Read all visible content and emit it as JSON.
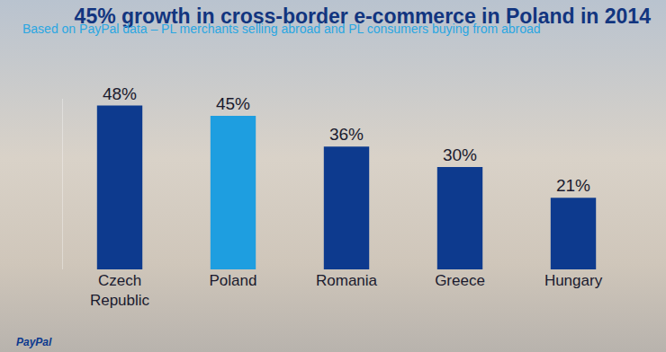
{
  "chart_data": {
    "type": "bar",
    "title": "45% growth in cross-border e-commerce in Poland in 2014",
    "subtitle": "Based on PayPal data – PL merchants selling abroad and PL consumers buying from abroad",
    "categories": [
      "Czech Republic",
      "Poland",
      "Romania",
      "Greece",
      "Hungary"
    ],
    "values": [
      48,
      45,
      36,
      30,
      21
    ],
    "value_labels": [
      "48%",
      "45%",
      "36%",
      "30%",
      "21%"
    ],
    "colors": [
      "#0d3a8e",
      "#1e9ee0",
      "#0d3a8e",
      "#0d3a8e",
      "#0d3a8e"
    ],
    "data_labels": true,
    "ylim": [
      0,
      50
    ],
    "grid": false,
    "tick_labels": "x",
    "annotations": [
      "PayPal"
    ]
  }
}
